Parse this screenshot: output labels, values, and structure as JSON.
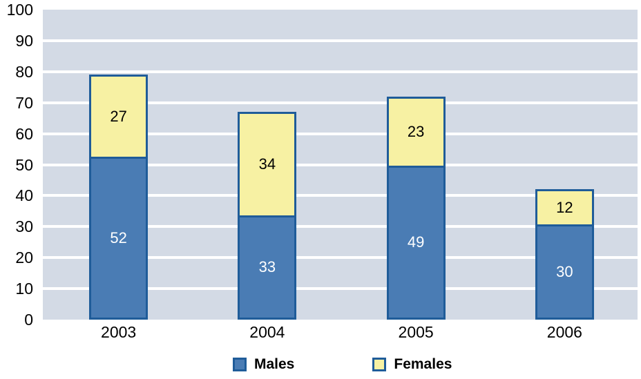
{
  "chart_data": {
    "type": "bar",
    "stacked": true,
    "title": "",
    "xlabel": "",
    "ylabel": "",
    "categories": [
      "2003",
      "2004",
      "2005",
      "2006"
    ],
    "series": [
      {
        "name": "Males",
        "values": [
          52,
          33,
          49,
          30
        ],
        "fill": "#4a7cb4",
        "label_color": "#ffffff"
      },
      {
        "name": "Females",
        "values": [
          27,
          34,
          23,
          12
        ],
        "fill": "#f7f1a3",
        "label_color": "#000000"
      }
    ],
    "ylim": [
      0,
      100
    ],
    "y_ticks": [
      "0",
      "10",
      "20",
      "30",
      "40",
      "50",
      "60",
      "70",
      "80",
      "90",
      "100"
    ],
    "grid": "horizontal",
    "legend_position": "bottom",
    "colors": {
      "bar_border": "#1f5c99",
      "plot_background": "#d3dae5",
      "gridline": "#ffffff",
      "tick_text": "#000000"
    }
  },
  "legend": {
    "males_label": "Males",
    "females_label": "Females"
  }
}
